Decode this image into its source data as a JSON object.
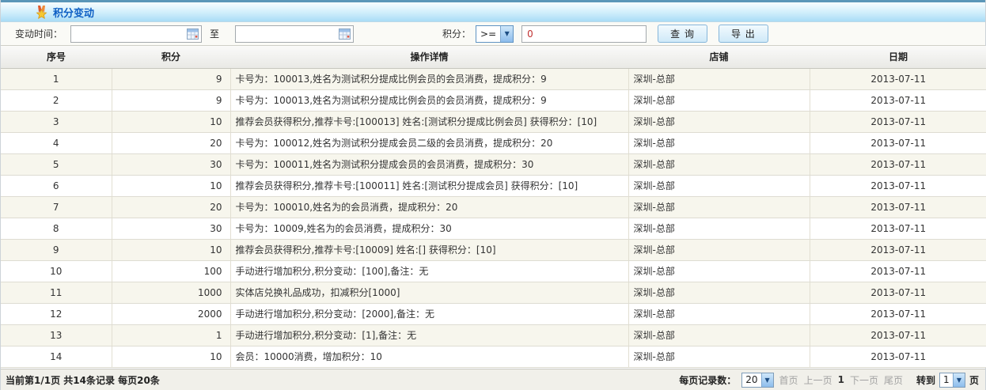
{
  "title_bar": {
    "title": "积分变动"
  },
  "filter": {
    "time_label": "变动时间：",
    "date_from_value": "",
    "to_label": "至",
    "date_to_value": "",
    "points_label": "积分：",
    "operator_selected": ">=",
    "points_value": "0",
    "query_button": "查  询",
    "export_button": "导  出"
  },
  "table": {
    "columns": [
      "序号",
      "积分",
      "操作详情",
      "店铺",
      "日期"
    ],
    "rows": [
      [
        "1",
        "9",
        "卡号为：100013,姓名为测试积分提成比例会员的会员消费，提成积分：9",
        "深圳-总部",
        "2013-07-11"
      ],
      [
        "2",
        "9",
        "卡号为：100013,姓名为测试积分提成比例会员的会员消费，提成积分：9",
        "深圳-总部",
        "2013-07-11"
      ],
      [
        "3",
        "10",
        "推荐会员获得积分,推荐卡号:[100013] 姓名:[测试积分提成比例会员] 获得积分：[10]",
        "深圳-总部",
        "2013-07-11"
      ],
      [
        "4",
        "20",
        "卡号为：100012,姓名为测试积分提成会员二级的会员消费，提成积分：20",
        "深圳-总部",
        "2013-07-11"
      ],
      [
        "5",
        "30",
        "卡号为：100011,姓名为测试积分提成会员的会员消费，提成积分：30",
        "深圳-总部",
        "2013-07-11"
      ],
      [
        "6",
        "10",
        "推荐会员获得积分,推荐卡号:[100011] 姓名:[测试积分提成会员] 获得积分：[10]",
        "深圳-总部",
        "2013-07-11"
      ],
      [
        "7",
        "20",
        "卡号为：100010,姓名为的会员消费，提成积分：20",
        "深圳-总部",
        "2013-07-11"
      ],
      [
        "8",
        "30",
        "卡号为：10009,姓名为的会员消费，提成积分：30",
        "深圳-总部",
        "2013-07-11"
      ],
      [
        "9",
        "10",
        "推荐会员获得积分,推荐卡号:[10009] 姓名:[] 获得积分：[10]",
        "深圳-总部",
        "2013-07-11"
      ],
      [
        "10",
        "100",
        "手动进行增加积分,积分变动：[100],备注：无",
        "深圳-总部",
        "2013-07-11"
      ],
      [
        "11",
        "1000",
        "实体店兑换礼品成功，扣减积分[1000]",
        "深圳-总部",
        "2013-07-11"
      ],
      [
        "12",
        "2000",
        "手动进行增加积分,积分变动：[2000],备注：无",
        "深圳-总部",
        "2013-07-11"
      ],
      [
        "13",
        "1",
        "手动进行增加积分,积分变动：[1],备注：无",
        "深圳-总部",
        "2013-07-11"
      ],
      [
        "14",
        "10",
        "会员：10000消费，增加积分：10",
        "深圳-总部",
        "2013-07-11"
      ]
    ]
  },
  "footer": {
    "summary": "当前第1/1页 共14条记录 每页20条",
    "page_size_label": "每页记录数：",
    "page_size_value": "20",
    "first_label": "首页",
    "prev_label": "上一页",
    "current_page": "1",
    "next_label": "下一页",
    "last_label": "尾页",
    "goto_label": "转到",
    "goto_value": "1",
    "page_suffix": "页"
  },
  "colors": {
    "accent_blue": "#0e5fc4",
    "title_gradient_bottom": "#a9dcf6",
    "top_strip": "#5a96b8",
    "row_stripe": "#f7f6ed",
    "points_value_red": "#c03030",
    "button_border": "#86b6da"
  },
  "icons": {
    "medal": "medal-icon",
    "calendar": "calendar-icon",
    "dropdown": "chevron-down-icon"
  }
}
